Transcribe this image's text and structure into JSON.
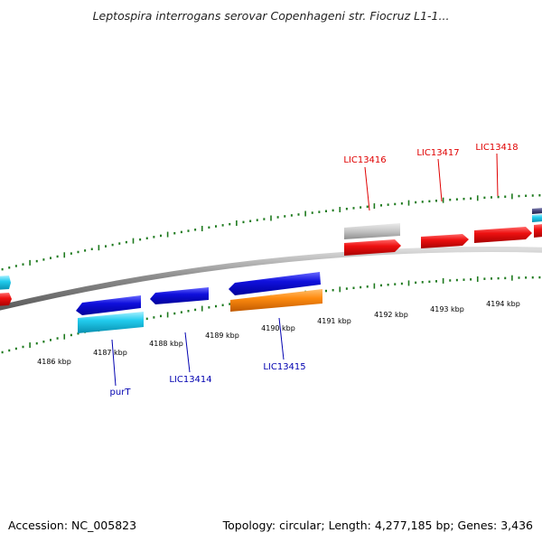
{
  "title": "Leptospira interrogans serovar Copenhageni str. Fiocruz L1-1...",
  "footer": {
    "accession": "Accession: NC_005823",
    "summary": "Topology: circular; Length: 4,277,185 bp; Genes: 3,436"
  },
  "colors": {
    "backbone": "#8a8a8a",
    "tick": "#1e7a1e",
    "plus_label": "#e00000",
    "minus_label": "#0000b0",
    "gene_red": "#ee1111",
    "gene_blue": "#1010dd",
    "gene_cyan": "#22ccee",
    "gene_orange": "#ff8c10",
    "gene_gray": "#c4c4c4",
    "gene_navy": "#44447a"
  },
  "scale": {
    "unit": "kbp",
    "labels": [
      "4186 kbp",
      "4187 kbp",
      "4188 kbp",
      "4189 kbp",
      "4190 kbp",
      "4191 kbp",
      "4192 kbp",
      "4193 kbp",
      "4194 kbp"
    ]
  },
  "gene_labels": {
    "plus_strand": [
      "LIC13416",
      "LIC13417",
      "LIC13418"
    ],
    "minus_strand": [
      "purT",
      "LIC13414",
      "LIC13415"
    ]
  },
  "features": [
    {
      "strand": "+",
      "track": 1,
      "color": "gene_cyan",
      "direction": "right"
    },
    {
      "strand": "+",
      "track": 2,
      "color": "gene_red",
      "direction": "right"
    },
    {
      "strand": "+",
      "track": 1,
      "color": "gene_gray",
      "direction": "none"
    },
    {
      "strand": "+",
      "track": 2,
      "color": "gene_red",
      "direction": "right"
    },
    {
      "strand": "+",
      "track": 2,
      "color": "gene_red",
      "direction": "right"
    },
    {
      "strand": "+",
      "track": 2,
      "color": "gene_red",
      "direction": "right"
    },
    {
      "strand": "+",
      "track": 1,
      "color": "gene_navy",
      "direction": "none"
    },
    {
      "strand": "+",
      "track": 1,
      "color": "gene_cyan",
      "direction": "none"
    },
    {
      "strand": "+",
      "track": 2,
      "color": "gene_red",
      "direction": "right"
    },
    {
      "strand": "-",
      "track": 1,
      "color": "gene_blue",
      "direction": "left"
    },
    {
      "strand": "-",
      "track": 2,
      "color": "gene_cyan",
      "direction": "none"
    },
    {
      "strand": "-",
      "track": 1,
      "color": "gene_blue",
      "direction": "left"
    },
    {
      "strand": "-",
      "track": 1,
      "color": "gene_blue",
      "direction": "left"
    },
    {
      "strand": "-",
      "track": 2,
      "color": "gene_orange",
      "direction": "none"
    }
  ]
}
